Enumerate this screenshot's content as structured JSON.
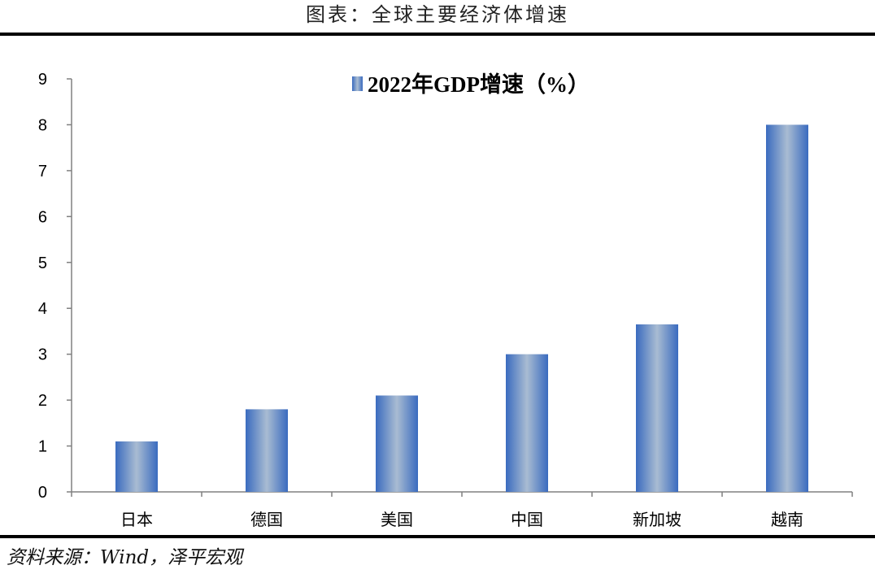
{
  "header": {
    "title": "图表：全球主要经济体增速"
  },
  "footer": {
    "source": "资料来源：Wind，泽平宏观"
  },
  "colors": {
    "bar_edge": "#3a6bbf",
    "bar_center": "#a9bcd2",
    "axis": "#808080",
    "rule": "#000000"
  },
  "chart_data": {
    "type": "bar",
    "categories": [
      "日本",
      "德国",
      "美国",
      "中国",
      "新加坡",
      "越南"
    ],
    "series": [
      {
        "name": "2022年GDP增速（%）",
        "values": [
          1.1,
          1.8,
          2.1,
          3.0,
          3.65,
          8.0
        ]
      }
    ],
    "yticks": [
      "0",
      "1",
      "2",
      "3",
      "4",
      "5",
      "6",
      "7",
      "8",
      "9"
    ],
    "ylim": [
      0,
      9
    ],
    "xlabel": "",
    "ylabel": "",
    "grid": false,
    "legend": "top-center"
  }
}
